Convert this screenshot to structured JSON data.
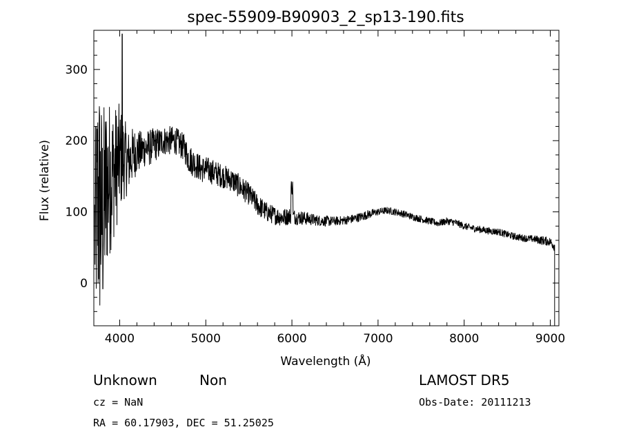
{
  "chart_data": {
    "type": "line",
    "title": "spec-55909-B90903_2_sp13-190.fits",
    "xlabel": "Wavelength (Å)",
    "ylabel": "Flux (relative)",
    "xlim": [
      3700,
      9100
    ],
    "ylim": [
      -60,
      355
    ],
    "x_ticks": [
      4000,
      5000,
      6000,
      7000,
      8000,
      9000
    ],
    "y_ticks": [
      0,
      100,
      200,
      300
    ],
    "grid": false,
    "series": [
      {
        "color": "#000000",
        "x": [
          3700,
          3750,
          3800,
          3850,
          3900,
          3950,
          4000,
          4050,
          4100,
          4150,
          4200,
          4250,
          4300,
          4350,
          4400,
          4450,
          4500,
          4550,
          4600,
          4650,
          4700,
          4750,
          4800,
          4850,
          4900,
          4950,
          5000,
          5100,
          5200,
          5300,
          5400,
          5500,
          5600,
          5700,
          5800,
          5900,
          6000,
          6050,
          6100,
          6200,
          6300,
          6400,
          6500,
          6600,
          6700,
          6800,
          6900,
          7000,
          7100,
          7200,
          7300,
          7400,
          7500,
          7600,
          7700,
          7800,
          7900,
          8000,
          8100,
          8200,
          8300,
          8400,
          8500,
          8600,
          8700,
          8800,
          8900,
          9000,
          9050
        ],
        "y": [
          60,
          120,
          90,
          140,
          150,
          160,
          175,
          175,
          170,
          180,
          185,
          185,
          190,
          190,
          195,
          195,
          200,
          200,
          200,
          200,
          195,
          190,
          175,
          170,
          165,
          160,
          160,
          155,
          150,
          145,
          135,
          125,
          110,
          100,
          95,
          92,
          95,
          92,
          92,
          90,
          88,
          87,
          87,
          88,
          90,
          93,
          97,
          100,
          102,
          100,
          97,
          93,
          90,
          87,
          84,
          87,
          85,
          80,
          77,
          75,
          73,
          72,
          68,
          65,
          63,
          62,
          60,
          58,
          52
        ],
        "noise": [
          80,
          150,
          120,
          100,
          80,
          70,
          60,
          45,
          35,
          30,
          25,
          22,
          20,
          20,
          18,
          18,
          16,
          16,
          16,
          15,
          15,
          15,
          16,
          16,
          15,
          15,
          14,
          14,
          13,
          13,
          13,
          12,
          12,
          11,
          10,
          10,
          9,
          8,
          8,
          7,
          6,
          6,
          5,
          5,
          5,
          5,
          5,
          4,
          4,
          4,
          4,
          4,
          4,
          4,
          4,
          4,
          4,
          4,
          4,
          4,
          4,
          4,
          4,
          4,
          4,
          4,
          5,
          5,
          6
        ]
      }
    ],
    "annotations": {
      "object_class": "Unknown",
      "object_subclass": "Non",
      "survey": "LAMOST DR5",
      "redshift": "cz = NaN",
      "obs_date": "Obs-Date: 20111213",
      "coords": "RA =  60.17903, DEC =  51.25025"
    }
  }
}
